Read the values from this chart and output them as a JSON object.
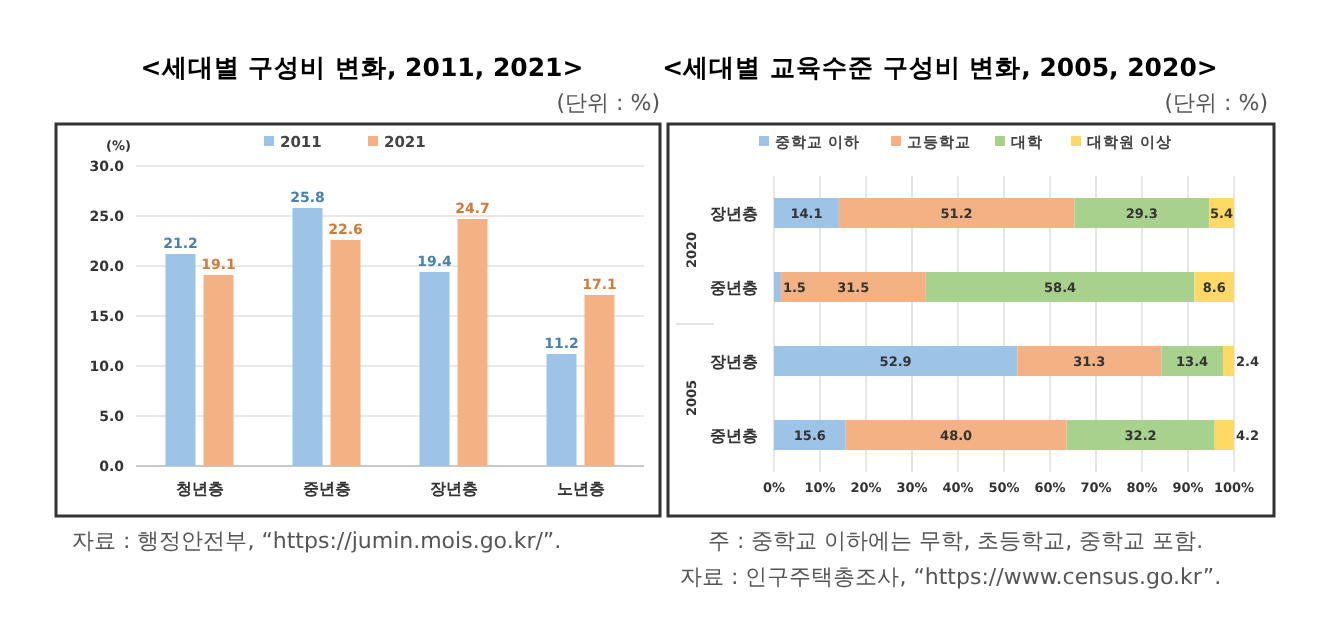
{
  "chart_data": [
    {
      "type": "bar",
      "title": "<세대별 구성비 변화, 2011, 2021>",
      "subtitle": "(단위 : %)",
      "ylabel": "(%)",
      "categories": [
        "청년층",
        "중년층",
        "장년층",
        "노년층"
      ],
      "series": [
        {
          "name": "2011",
          "color": "#9dc3e6",
          "values": [
            21.2,
            25.8,
            19.4,
            11.2
          ]
        },
        {
          "name": "2021",
          "color": "#f4b183",
          "values": [
            19.1,
            22.6,
            24.7,
            17.1
          ]
        }
      ],
      "ylim": [
        0,
        30
      ],
      "yticks": [
        {
          "value": 0,
          "label": "0.0"
        },
        {
          "value": 5,
          "label": "5.0"
        },
        {
          "value": 10,
          "label": "10.0"
        },
        {
          "value": 15,
          "label": "15.0"
        },
        {
          "value": 20,
          "label": "20.0"
        },
        {
          "value": 25,
          "label": "25.0"
        },
        {
          "value": 30,
          "label": "30.0"
        }
      ],
      "grid": "y",
      "legend": "top",
      "data_labels": true,
      "annotations": [
        "자료 : 행정안전부, “https://jumin.mois.go.kr/”."
      ]
    },
    {
      "type": "bar",
      "orientation": "horizontal",
      "stacked": true,
      "title": "<세대별 교육수준 구성비 변화, 2005, 2020>",
      "subtitle": "(단위 : %)",
      "categories": [
        "장년층",
        "중년층",
        "장년층",
        "중년층"
      ],
      "series": [
        {
          "name": "중학교 이하",
          "color": "#9dc3e6",
          "values": [
            14.1,
            1.5,
            52.9,
            15.6
          ],
          "value_labels": [
            "14.1",
            "1.5",
            "52.9",
            "15.6"
          ]
        },
        {
          "name": "고등학교",
          "color": "#f4b183",
          "values": [
            51.2,
            31.5,
            31.3,
            48.0
          ],
          "value_labels": [
            "51.2",
            "31.5",
            "31.3",
            "48.0"
          ]
        },
        {
          "name": "대학",
          "color": "#a9d18e",
          "values": [
            29.3,
            58.4,
            13.4,
            32.2
          ],
          "value_labels": [
            "29.3",
            "58.4",
            "13.4",
            "32.2"
          ]
        },
        {
          "name": "대학원 이상",
          "color": "#ffd966",
          "values": [
            5.4,
            8.6,
            2.4,
            4.2
          ],
          "value_labels": [
            "5.4",
            "8.6",
            "2.4",
            "4.2"
          ]
        }
      ],
      "xlim": [
        0,
        100
      ],
      "xticks": [
        {
          "value": 0,
          "label": "0%"
        },
        {
          "value": 10,
          "label": "10%"
        },
        {
          "value": 20,
          "label": "20%"
        },
        {
          "value": 30,
          "label": "30%"
        },
        {
          "value": 40,
          "label": "40%"
        },
        {
          "value": 50,
          "label": "50%"
        },
        {
          "value": 60,
          "label": "60%"
        },
        {
          "value": 70,
          "label": "70%"
        },
        {
          "value": 80,
          "label": "80%"
        },
        {
          "value": 90,
          "label": "90%"
        },
        {
          "value": 100,
          "label": "100%"
        }
      ],
      "grid": "x",
      "legend": "top",
      "annotations": [
        "2020",
        "2005",
        "주 : 중학교 이하에는 무학, 초등학교, 중학교 포함.",
        "자료 : 인구주택총조사, “https://www.census.go.kr”."
      ]
    }
  ]
}
